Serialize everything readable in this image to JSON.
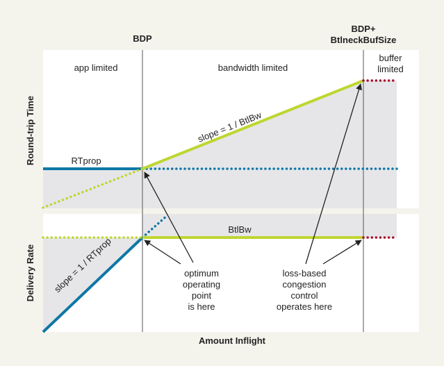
{
  "header": {
    "bdp_label": "BDP",
    "bdp_buf_line1": "BDP+",
    "bdp_buf_line2": "BtlneckBufSize"
  },
  "top_panel": {
    "y_axis_label": "Round-trip Time",
    "regions": {
      "app_limited": "app limited",
      "bandwidth_limited": "bandwidth limited",
      "buffer_limited_line1": "buffer",
      "buffer_limited_line2": "limited"
    },
    "rtprop_label": "RTprop",
    "slope_label": "slope = 1 / BtlBw"
  },
  "bottom_panel": {
    "y_axis_label": "Delivery Rate",
    "btlbw_label": "BtlBw",
    "slope_label": "slope = 1 / RTprop"
  },
  "annotations": {
    "optimum": [
      "optimum",
      "operating",
      "point",
      "is here"
    ],
    "loss_based": [
      "loss-based",
      "congestion",
      "control",
      "operates here"
    ]
  },
  "x_axis_label": "Amount Inflight",
  "colors": {
    "background": "#f4f3ec",
    "panel": "#ffffff",
    "shade": "#e6e6e9",
    "blue": "#0e77a6",
    "green": "#bfd630",
    "red": "#a8132f",
    "divider": "#555555"
  }
}
